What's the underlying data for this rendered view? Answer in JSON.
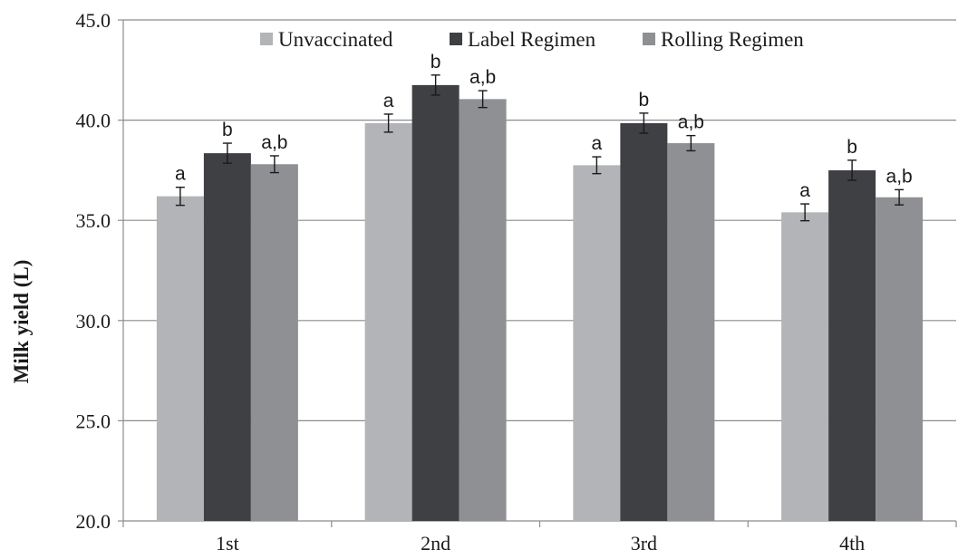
{
  "chart_data": {
    "type": "bar",
    "categories": [
      "1st",
      "2nd",
      "3rd",
      "4th"
    ],
    "series": [
      {
        "name": "Unvaccinated",
        "color": "#b3b4b7",
        "values": [
          36.2,
          39.85,
          37.75,
          35.4
        ],
        "errors": [
          0.45,
          0.45,
          0.42,
          0.42
        ],
        "labels": [
          "a",
          "a",
          "a",
          "a"
        ]
      },
      {
        "name": "Label Regimen",
        "color": "#3f4043",
        "values": [
          38.35,
          41.75,
          39.85,
          37.5
        ],
        "errors": [
          0.5,
          0.5,
          0.5,
          0.5
        ],
        "labels": [
          "b",
          "b",
          "b",
          "b"
        ]
      },
      {
        "name": "Rolling Regimen",
        "color": "#8f9094",
        "values": [
          37.8,
          41.05,
          38.85,
          36.15
        ],
        "errors": [
          0.42,
          0.42,
          0.38,
          0.38
        ],
        "labels": [
          "a,b",
          "a,b",
          "a,b",
          "a,b"
        ]
      }
    ],
    "ylabel": "Milk yield (L)",
    "xlabel": "",
    "ylim": [
      20,
      45
    ],
    "yticks": [
      "20.0",
      "25.0",
      "30.0",
      "35.0",
      "40.0",
      "45.0"
    ],
    "grid": true,
    "legend_position": "top"
  }
}
